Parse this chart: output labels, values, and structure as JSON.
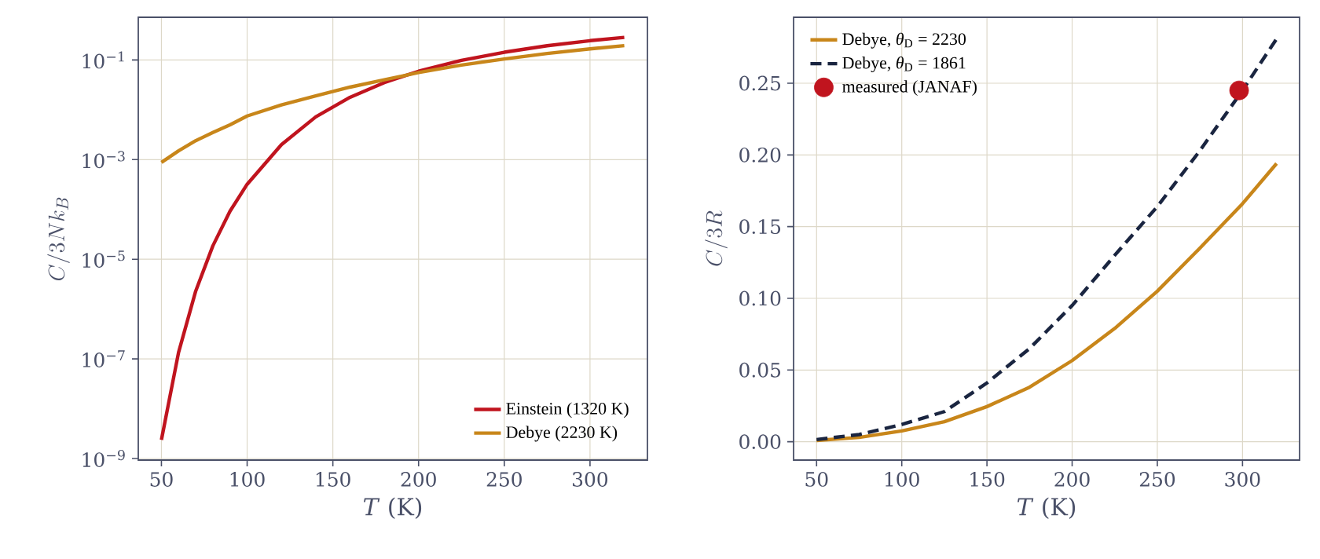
{
  "chart_data": [
    {
      "type": "line",
      "xlabel": "*T*  (K)",
      "ylabel": "C/3Nk_B",
      "log": "y",
      "grid": true,
      "legend": "bottom right",
      "x": [
        50,
        60,
        70,
        80,
        90,
        100,
        120,
        140,
        160,
        180,
        200,
        225,
        250,
        275,
        300,
        320
      ],
      "xlim": [
        36.5,
        333.5
      ],
      "xticks": [
        50,
        100,
        150,
        200,
        250,
        300
      ],
      "ylim": [
        9.3e-10,
        0.72
      ],
      "yticks": [
        {
          "value": 1e-09,
          "label": "10$^{−9}$"
        },
        {
          "value": 1e-07,
          "label": "10$^{−7}$"
        },
        {
          "value": 1e-05,
          "label": "10$^{−5}$"
        },
        {
          "value": 0.001,
          "label": "10$^{−3}$"
        },
        {
          "value": 0.1,
          "label": "10$^{−1}$"
        }
      ],
      "series": [
        {
          "name": "Einstein (1320 K)",
          "color": "#c0141e",
          "values": [
            2.37e-09,
            1.35e-07,
            2.3e-06,
            1.86e-05,
            9.2e-05,
            0.00032,
            0.002,
            0.0072,
            0.0178,
            0.0352,
            0.0594,
            0.098,
            0.143,
            0.193,
            0.244,
            0.284
          ]
        },
        {
          "name": "Debye (2230 K)",
          "color": "#c8861a",
          "values": [
            0.00088,
            0.0015,
            0.0024,
            0.0035,
            0.005,
            0.0075,
            0.0125,
            0.019,
            0.0285,
            0.04,
            0.056,
            0.079,
            0.105,
            0.135,
            0.167,
            0.194
          ]
        }
      ]
    },
    {
      "type": "line",
      "xlabel": "*T*  (K)",
      "ylabel": "C/3R",
      "grid": true,
      "legend": "top left",
      "x": [
        50,
        75,
        100,
        125,
        150,
        175,
        200,
        225,
        250,
        275,
        300,
        320
      ],
      "xlim": [
        36.5,
        333.5
      ],
      "xticks": [
        50,
        100,
        150,
        200,
        250,
        300
      ],
      "ylim": [
        -0.0128,
        0.296
      ],
      "yticks": [
        {
          "value": 0,
          "label": "0.00"
        },
        {
          "value": 0.05,
          "label": "0.05"
        },
        {
          "value": 0.1,
          "label": "0.10"
        },
        {
          "value": 0.15,
          "label": "0.15"
        },
        {
          "value": 0.2,
          "label": "0.20"
        },
        {
          "value": 0.25,
          "label": "0.25"
        }
      ],
      "series": [
        {
          "name": "Debye, *θ*$_{D}$ = 2230",
          "color": "#c8861a",
          "line_style": "solid",
          "values": [
            0.0009,
            0.003,
            0.0075,
            0.014,
            0.0245,
            0.038,
            0.0566,
            0.079,
            0.105,
            0.135,
            0.166,
            0.194
          ]
        },
        {
          "name": "Debye, *θ*$_{D}$ = 1861",
          "color": "#1a2540",
          "line_style": "dashed",
          "values": [
            0.0015,
            0.005,
            0.012,
            0.021,
            0.041,
            0.065,
            0.095,
            0.13,
            0.164,
            0.203,
            0.245,
            0.281
          ]
        },
        {
          "name": "measured (JANAF)",
          "type": "scatter",
          "marker": "circle",
          "color": "#c0141e",
          "x": [
            298
          ],
          "values": [
            0.245
          ]
        }
      ]
    }
  ]
}
